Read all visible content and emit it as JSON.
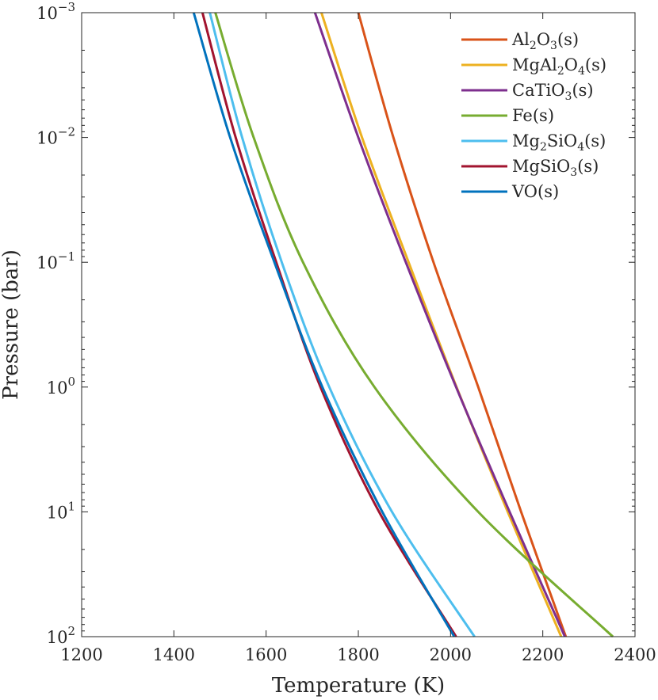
{
  "chart_data": {
    "type": "line",
    "title": "",
    "xlabel": "Temperature (K)",
    "ylabel": "Pressure (bar)",
    "xlim": [
      1200,
      2400
    ],
    "ylim": [
      0.001,
      100
    ],
    "yscale": "log",
    "yreversed": true,
    "grid": false,
    "legend_position": "top-right",
    "x_ticks": [
      1200,
      1400,
      1600,
      1800,
      2000,
      2200,
      2400
    ],
    "x_tick_labels": [
      "1200",
      "1400",
      "1600",
      "1800",
      "2000",
      "2200",
      "2400"
    ],
    "y_ticks": [
      0.001,
      0.01,
      0.1,
      1,
      10,
      100
    ],
    "y_tick_labels": [
      {
        "base": "10",
        "exp": "−3"
      },
      {
        "base": "10",
        "exp": "−2"
      },
      {
        "base": "10",
        "exp": "−1"
      },
      {
        "base": "10",
        "exp": "0"
      },
      {
        "base": "10",
        "exp": "1"
      },
      {
        "base": "10",
        "exp": "2"
      }
    ],
    "series": [
      {
        "name": "Al2O3(s)",
        "label_parts": [
          [
            "Al",
            ""
          ],
          [
            "2",
            "sub"
          ],
          [
            "O",
            ""
          ],
          [
            "3",
            "sub"
          ],
          [
            "(s)",
            ""
          ]
        ],
        "color": "#D95319",
        "points": [
          [
            1800,
            0.001
          ],
          [
            1876,
            0.01
          ],
          [
            1963,
            0.1
          ],
          [
            2060,
            1
          ],
          [
            2153,
            10
          ],
          [
            2250,
            100
          ]
        ]
      },
      {
        "name": "MgAl2O4(s)",
        "label_parts": [
          [
            "MgAl",
            ""
          ],
          [
            "2",
            "sub"
          ],
          [
            "O",
            ""
          ],
          [
            "4",
            "sub"
          ],
          [
            "(s)",
            ""
          ]
        ],
        "color": "#EDB120",
        "points": [
          [
            1720,
            0.001
          ],
          [
            1808,
            0.01
          ],
          [
            1909,
            0.1
          ],
          [
            2013,
            1
          ],
          [
            2124,
            10
          ],
          [
            2240,
            100
          ]
        ]
      },
      {
        "name": "CaTiO3(s)",
        "label_parts": [
          [
            "CaTiO",
            ""
          ],
          [
            "3",
            "sub"
          ],
          [
            "(s)",
            ""
          ]
        ],
        "color": "#7E2F8E",
        "points": [
          [
            1706,
            0.001
          ],
          [
            1800,
            0.01
          ],
          [
            1903,
            0.1
          ],
          [
            2012,
            1
          ],
          [
            2128,
            10
          ],
          [
            2248,
            100
          ]
        ]
      },
      {
        "name": "Fe(s)",
        "label_parts": [
          [
            "Fe(s)",
            ""
          ]
        ],
        "color": "#77AC30",
        "points": [
          [
            1490,
            0.001
          ],
          [
            1573,
            0.01
          ],
          [
            1680,
            0.1
          ],
          [
            1835,
            1
          ],
          [
            2060,
            10
          ],
          [
            2352,
            100
          ]
        ]
      },
      {
        "name": "Mg2SiO4(s)",
        "label_parts": [
          [
            "Mg",
            ""
          ],
          [
            "2",
            "sub"
          ],
          [
            "SiO",
            ""
          ],
          [
            "4",
            "sub"
          ],
          [
            "(s)",
            ""
          ]
        ],
        "color": "#4DBEEE",
        "points": [
          [
            1478,
            0.001
          ],
          [
            1548,
            0.01
          ],
          [
            1634,
            0.1
          ],
          [
            1737,
            1
          ],
          [
            1873,
            10
          ],
          [
            2052,
            100
          ]
        ]
      },
      {
        "name": "MgSiO3(s)",
        "label_parts": [
          [
            "MgSiO",
            ""
          ],
          [
            "3",
            "sub"
          ],
          [
            "(s)",
            ""
          ]
        ],
        "color": "#A2142F",
        "points": [
          [
            1462,
            0.001
          ],
          [
            1534,
            0.01
          ],
          [
            1622,
            0.1
          ],
          [
            1718,
            1
          ],
          [
            1845,
            10
          ],
          [
            2012,
            100
          ]
        ]
      },
      {
        "name": "VO(s)",
        "label_parts": [
          [
            "VO(s)",
            ""
          ]
        ],
        "color": "#0072BD",
        "points": [
          [
            1443,
            0.001
          ],
          [
            1522,
            0.01
          ],
          [
            1618,
            0.1
          ],
          [
            1722,
            1
          ],
          [
            1852,
            10
          ],
          [
            2008,
            100
          ]
        ]
      }
    ]
  }
}
